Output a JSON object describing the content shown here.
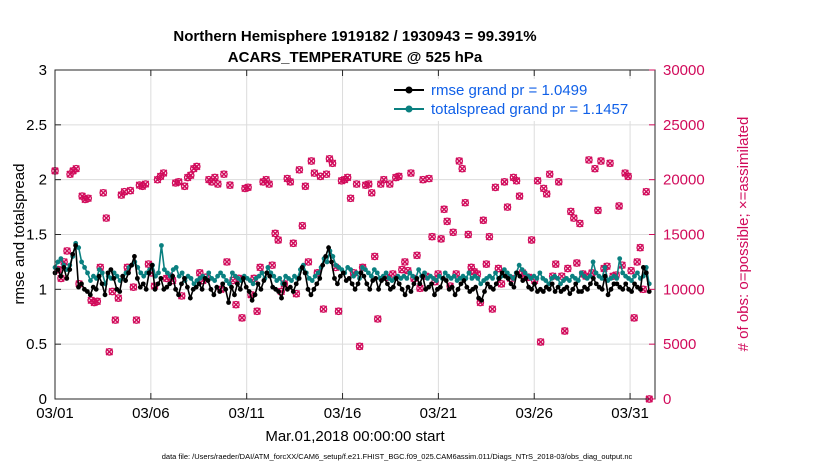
{
  "chart_data": {
    "type": "line",
    "title": [
      "Northern Hemisphere 1919182 / 1930943 = 99.391%",
      "ACARS_TEMPERATURE @ 525 hPa"
    ],
    "xlabel": "Mar.01,2018 00:00:00 start",
    "ylabel": "rmse and totalspread",
    "y2label": "# of obs: o=possible; ×=assimilated",
    "xlim": [
      0,
      31.3
    ],
    "ylim": [
      0,
      3
    ],
    "y2lim": [
      0,
      30000
    ],
    "x_ticks": [
      0,
      5,
      10,
      15,
      20,
      25,
      30
    ],
    "x_tick_labels": [
      "03/01",
      "03/06",
      "03/11",
      "03/16",
      "03/21",
      "03/26",
      "03/31"
    ],
    "y_ticks": [
      0,
      0.5,
      1,
      1.5,
      2,
      2.5,
      3
    ],
    "y_tick_labels": [
      "0",
      "0.5",
      "1",
      "1.5",
      "2",
      "2.5",
      "3"
    ],
    "y2_ticks": [
      0,
      5000,
      10000,
      15000,
      20000,
      25000,
      30000
    ],
    "y2_tick_labels": [
      "0",
      "5000",
      "10000",
      "15000",
      "20000",
      "25000",
      "30000"
    ],
    "legend": [
      "rmse grand pr = 1.0499",
      "totalspread grand pr = 1.1457"
    ],
    "series": [
      {
        "name": "rmse",
        "color": "#000000",
        "values": [
          1.15,
          1.18,
          1.12,
          1.2,
          1.1,
          1.18,
          1.32,
          1.4,
          1.02,
          1.05,
          1.0,
          0.98,
          0.95,
          1.02,
          1.0,
          1.12,
          1.05,
          0.95,
          1.15,
          1.18,
          1.1,
          1.0,
          0.98,
          1.12,
          1.08,
          1.15,
          1.22,
          1.3,
          1.1,
          1.02,
          1.05,
          1.0,
          1.15,
          1.22,
          1.0,
          1.05,
          1.1,
          1.0,
          1.02,
          1.05,
          1.12,
          1.0,
          0.95,
          1.05,
          1.1,
          1.02,
          0.92,
          1.0,
          1.02,
          1.05,
          1.0,
          1.1,
          1.08,
          1.0,
          0.95,
          1.02,
          0.98,
          1.05,
          1.0,
          0.88,
          1.02,
          0.95,
          1.05,
          1.0,
          1.1,
          1.02,
          0.98,
          0.9,
          0.95,
          1.05,
          1.0,
          1.08,
          1.15,
          1.12,
          1.02,
          1.0,
          0.98,
          0.92,
          1.05,
          1.0,
          1.02,
          0.98,
          1.05,
          1.1,
          1.2,
          1.15,
          1.0,
          0.95,
          1.0,
          1.05,
          1.1,
          1.22,
          1.3,
          1.38,
          1.25,
          1.1,
          1.05,
          1.12,
          1.15,
          1.08,
          1.1,
          1.05,
          1.0,
          1.05,
          1.15,
          1.12,
          1.05,
          1.0,
          1.08,
          1.1,
          1.0,
          1.08,
          1.1,
          1.05,
          1.0,
          1.02,
          1.1,
          1.05,
          1.0,
          0.95,
          1.02,
          0.98,
          1.05,
          1.1,
          1.05,
          1.12,
          1.0,
          1.02,
          1.05,
          0.95,
          1.0,
          1.02,
          1.1,
          1.08,
          1.0,
          1.02,
          0.95,
          1.0,
          1.05,
          1.08,
          1.02,
          0.98,
          1.0,
          1.02,
          0.92,
          0.9,
          0.98,
          1.05,
          1.02,
          1.0,
          1.05,
          1.1,
          1.15,
          1.12,
          1.1,
          1.05,
          1.02,
          1.15,
          1.12,
          1.08,
          1.1,
          1.02,
          1.0,
          1.05,
          0.98,
          1.0,
          0.98,
          1.02,
          1.0,
          1.05,
          0.98,
          1.02,
          0.98,
          1.0,
          1.02,
          0.96,
          1.0,
          1.05,
          0.98,
          0.98,
          1.02,
          1.0,
          1.05,
          1.1,
          1.05,
          1.02,
          1.0,
          1.12,
          0.95,
          1.0,
          1.05,
          1.05,
          1.02,
          1.0,
          1.05,
          1.0,
          0.98,
          1.05,
          1.02,
          1.0,
          1.2,
          1.15,
          0.98
        ]
      },
      {
        "name": "totalspread",
        "color": "#0a8080",
        "values": [
          1.2,
          1.25,
          1.28,
          1.22,
          1.18,
          1.22,
          1.3,
          1.42,
          1.38,
          1.25,
          1.2,
          1.15,
          1.08,
          1.12,
          1.1,
          1.18,
          1.15,
          1.05,
          1.12,
          1.1,
          1.15,
          1.12,
          1.08,
          1.1,
          1.15,
          1.2,
          1.22,
          1.25,
          1.2,
          1.15,
          1.12,
          1.15,
          1.18,
          1.22,
          1.12,
          1.15,
          1.4,
          1.18,
          1.15,
          1.12,
          1.18,
          1.2,
          1.12,
          1.15,
          1.08,
          1.12,
          1.1,
          1.05,
          1.08,
          1.1,
          1.12,
          1.1,
          1.15,
          1.1,
          1.08,
          1.12,
          1.15,
          1.12,
          1.08,
          1.05,
          1.15,
          1.12,
          1.1,
          1.08,
          1.12,
          1.1,
          1.08,
          1.05,
          1.1,
          1.12,
          1.15,
          1.1,
          1.2,
          1.15,
          1.12,
          1.08,
          1.1,
          1.05,
          1.12,
          1.1,
          1.08,
          1.12,
          1.1,
          1.18,
          1.22,
          1.15,
          1.1,
          1.08,
          1.12,
          1.15,
          1.2,
          1.28,
          1.25,
          1.35,
          1.3,
          1.22,
          1.2,
          1.18,
          1.15,
          1.2,
          1.18,
          1.12,
          1.15,
          1.1,
          1.2,
          1.18,
          1.15,
          1.12,
          1.18,
          1.15,
          1.1,
          1.12,
          1.15,
          1.1,
          1.08,
          1.1,
          1.12,
          1.1,
          1.12,
          1.1,
          1.15,
          1.12,
          1.1,
          1.18,
          1.12,
          1.15,
          1.1,
          1.12,
          1.1,
          1.08,
          1.12,
          1.1,
          1.15,
          1.12,
          1.1,
          1.12,
          1.08,
          1.1,
          1.12,
          1.1,
          1.15,
          1.1,
          1.12,
          1.1,
          1.05,
          1.08,
          1.1,
          1.12,
          1.1,
          1.15,
          1.1,
          1.12,
          1.18,
          1.15,
          1.12,
          1.1,
          1.15,
          1.22,
          1.18,
          1.15,
          1.12,
          1.1,
          1.12,
          1.1,
          1.15,
          1.1,
          1.08,
          1.05,
          1.1,
          1.12,
          1.1,
          1.05,
          1.08,
          1.1,
          1.08,
          1.12,
          1.1,
          1.08,
          1.15,
          1.12,
          1.1,
          1.12,
          1.25,
          1.15,
          1.12,
          1.1,
          1.2,
          1.08,
          1.1,
          1.12,
          1.1,
          1.28,
          1.15,
          1.12,
          1.1,
          1.08,
          1.12,
          1.15,
          1.1,
          1.12,
          1.2,
          1.05
        ]
      }
    ],
    "obs_series": [
      {
        "name": "possible",
        "color": "#d10b5b",
        "values": [
          20800,
          11800,
          11000,
          12500,
          13500,
          20500,
          20800,
          21000,
          10500,
          18500,
          18200,
          18300,
          9000,
          8800,
          8900,
          12000,
          18800,
          16500,
          4300,
          9800,
          7200,
          9200,
          18600,
          18900,
          12000,
          19000,
          10200,
          7200,
          19500,
          19400,
          19600,
          12300,
          11500,
          10300,
          20000,
          20300,
          20600,
          11000,
          11200,
          10800,
          19700,
          19800,
          9400,
          19400,
          20200,
          20400,
          21000,
          21200,
          11500,
          10800,
          11100,
          20000,
          19800,
          20200,
          19600,
          10000,
          20500,
          12500,
          19500,
          10800,
          8600,
          11000,
          7400,
          19200,
          19300,
          9500,
          11000,
          8000,
          12000,
          19800,
          20000,
          19600,
          12200,
          15100,
          14500,
          9800,
          10500,
          20100,
          19800,
          14200,
          9600,
          20900,
          15800,
          19400,
          12500,
          21700,
          20600,
          11500,
          20300,
          8200,
          20500,
          21900,
          21500,
          12000,
          8000,
          19900,
          20000,
          20200,
          18300,
          11500,
          19600,
          4800,
          12000,
          19500,
          19600,
          18800,
          13000,
          7300,
          19600,
          20000,
          11100,
          19600,
          11400,
          20200,
          20300,
          11800,
          12500,
          11700,
          20600,
          11000,
          13100,
          10100,
          20000,
          11200,
          20100,
          14800,
          10700,
          11400,
          14600,
          17300,
          16200,
          10300,
          15200,
          11400,
          21700,
          21000,
          17900,
          15000,
          12000,
          11600,
          11400,
          8800,
          16300,
          12300,
          14800,
          8200,
          19300,
          11900,
          10500,
          19800,
          17500,
          11000,
          20200,
          19900,
          18500,
          11500,
          11100,
          11100,
          14500,
          10800,
          19900,
          5200,
          19200,
          18700,
          20500,
          11200,
          12300,
          19800,
          11200,
          6200,
          11900,
          17100,
          16500,
          12400,
          16000,
          11400,
          11200,
          21800,
          11500,
          21000,
          17200,
          21700,
          11900,
          12100,
          21500,
          11200,
          11300,
          17600,
          12200,
          20600,
          20300,
          11700,
          7400,
          12500,
          13800,
          10000,
          18900,
          0
        ]
      },
      {
        "name": "assimilated",
        "color": "#d10b5b",
        "values": [
          20800,
          11800,
          11000,
          12500,
          13500,
          20500,
          20800,
          21000,
          10500,
          18500,
          18200,
          18300,
          9000,
          8800,
          8900,
          12000,
          18800,
          16500,
          4300,
          9800,
          7200,
          9200,
          18600,
          18900,
          12000,
          19000,
          10200,
          7200,
          19500,
          19400,
          19600,
          12300,
          11500,
          10300,
          20000,
          20300,
          20600,
          11000,
          11200,
          10800,
          19700,
          19800,
          9400,
          19400,
          20200,
          20400,
          21000,
          21200,
          11500,
          10800,
          11100,
          20000,
          19800,
          20200,
          19600,
          10000,
          20500,
          12500,
          19500,
          10800,
          8600,
          11000,
          7400,
          19200,
          19300,
          9500,
          11000,
          8000,
          12000,
          19800,
          20000,
          19600,
          12200,
          15100,
          14500,
          9800,
          10500,
          20100,
          19800,
          14200,
          9600,
          20900,
          15800,
          19400,
          12500,
          21700,
          20600,
          11500,
          20300,
          8200,
          20500,
          21900,
          21500,
          12000,
          8000,
          19900,
          20000,
          20200,
          18300,
          11500,
          19600,
          4800,
          12000,
          19500,
          19600,
          18800,
          13000,
          7300,
          19600,
          20000,
          11100,
          19600,
          11400,
          20200,
          20300,
          11800,
          12500,
          11700,
          20600,
          11000,
          13100,
          10100,
          20000,
          11200,
          20100,
          14800,
          10700,
          11400,
          14600,
          17300,
          16200,
          10300,
          15200,
          11400,
          21700,
          21000,
          17900,
          15000,
          12000,
          11600,
          11400,
          8800,
          16300,
          12300,
          14800,
          8200,
          19300,
          11900,
          10500,
          19800,
          17500,
          11000,
          20200,
          19900,
          18500,
          11500,
          11100,
          11100,
          14500,
          10800,
          19900,
          5200,
          19200,
          18700,
          20500,
          11200,
          12300,
          19800,
          11200,
          6200,
          11900,
          17100,
          16500,
          12400,
          16000,
          11400,
          11200,
          21800,
          11500,
          21000,
          17200,
          21700,
          11900,
          12100,
          21500,
          11200,
          11300,
          17600,
          12200,
          20600,
          20300,
          11700,
          7400,
          12500,
          13800,
          10000,
          18900,
          0
        ]
      }
    ],
    "footer_note": "data file: /Users/raeder/DAI/ATM_forcXX/CAM6_setup/f.e21.FHIST_BGC.f09_025.CAM6assim.011/Diags_NTrS_2018-03/obs_diag_output.nc"
  }
}
